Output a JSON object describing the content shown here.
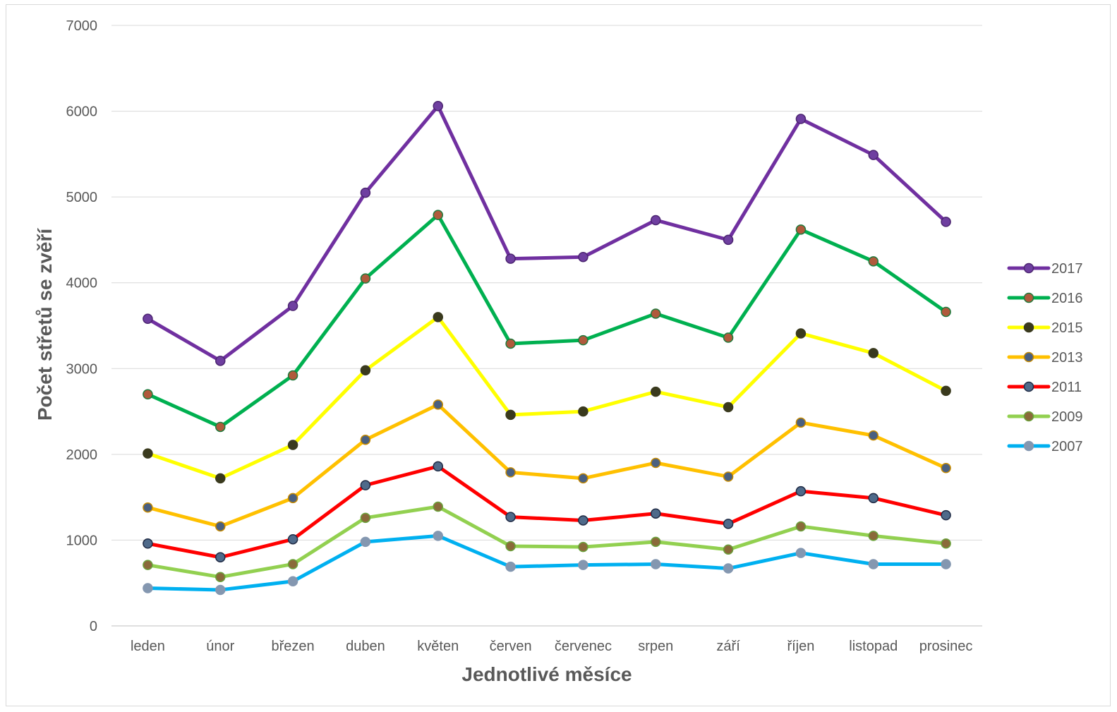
{
  "chart_data": {
    "type": "line",
    "title": "",
    "xlabel": "Jednotlivé měsíce",
    "ylabel": "Počet střetů se zvěří",
    "ylim": [
      0,
      7000
    ],
    "yticks": [
      "0",
      "1000",
      "2000",
      "3000",
      "4000",
      "5000",
      "6000",
      "7000"
    ],
    "grid": true,
    "legend_position": "right",
    "categories": [
      "leden",
      "únor",
      "březen",
      "duben",
      "květen",
      "červen",
      "červenec",
      "srpen",
      "září",
      "říjen",
      "listopad",
      "prosinec"
    ],
    "series": [
      {
        "name": "2017",
        "color": "#7030a0",
        "marker_fill": "#6f3fa0",
        "marker_stroke": "#4b2470",
        "values": [
          3580,
          3090,
          3730,
          5050,
          6060,
          4280,
          4300,
          4730,
          4500,
          5910,
          5490,
          4710
        ]
      },
      {
        "name": "2016",
        "color": "#00b050",
        "marker_fill": "#b05a3c",
        "marker_stroke": "#1e7a3c",
        "values": [
          2700,
          2320,
          2920,
          4050,
          4790,
          3290,
          3330,
          3640,
          3360,
          4620,
          4250,
          3660
        ]
      },
      {
        "name": "2015",
        "color": "#ffff00",
        "marker_fill": "#3a3a1e",
        "marker_stroke": "#3a3a1e",
        "values": [
          2010,
          1720,
          2110,
          2980,
          3600,
          2460,
          2500,
          2730,
          2550,
          3410,
          3180,
          2740
        ]
      },
      {
        "name": "2013",
        "color": "#ffc000",
        "marker_fill": "#4a6080",
        "marker_stroke": "#c68a00",
        "values": [
          1380,
          1160,
          1490,
          2170,
          2580,
          1790,
          1720,
          1900,
          1740,
          2370,
          2220,
          1840
        ]
      },
      {
        "name": "2011",
        "color": "#ff0000",
        "marker_fill": "#4f6a8a",
        "marker_stroke": "#1f2a44",
        "values": [
          960,
          800,
          1010,
          1640,
          1860,
          1270,
          1230,
          1310,
          1190,
          1570,
          1490,
          1290
        ]
      },
      {
        "name": "2009",
        "color": "#92d050",
        "marker_fill": "#8a6a3a",
        "marker_stroke": "#6aa23a",
        "values": [
          710,
          570,
          720,
          1260,
          1390,
          930,
          920,
          980,
          890,
          1160,
          1050,
          960
        ]
      },
      {
        "name": "2007",
        "color": "#00b0f0",
        "marker_fill": "#8497b0",
        "marker_stroke": "#8497b0",
        "values": [
          440,
          420,
          520,
          980,
          1050,
          690,
          710,
          720,
          670,
          850,
          720,
          720
        ]
      }
    ]
  }
}
